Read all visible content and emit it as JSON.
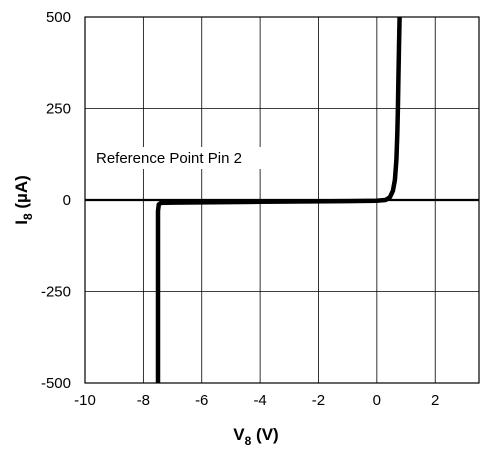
{
  "chart_data": {
    "type": "line",
    "title": "",
    "xlabel": {
      "main": "V",
      "sub": "8",
      "unit": " (V)"
    },
    "ylabel": {
      "main": "I",
      "sub": "8",
      "unit": " (µA)"
    },
    "xlim": [
      -10,
      3.5
    ],
    "ylim": [
      -500,
      500
    ],
    "x_ticks": [
      -10,
      -8,
      -6,
      -4,
      -2,
      0,
      2
    ],
    "x_tick_labels": [
      "-10",
      "-8",
      "-6",
      "-4",
      "-2",
      "0",
      "2"
    ],
    "y_ticks": [
      -500,
      -250,
      0,
      250,
      500
    ],
    "y_tick_labels": [
      "-500",
      "-250",
      "0",
      "250",
      "500"
    ],
    "grid": true,
    "annotation": "Reference Point Pin 2",
    "series": [
      {
        "x": [
          -7.5,
          -7.5,
          -7.47,
          -7.4,
          -7.0,
          -4.0,
          -1.0,
          0.0,
          0.3,
          0.45,
          0.55,
          0.62,
          0.67,
          0.7,
          0.72,
          0.74,
          0.76,
          0.78
        ],
        "y": [
          -500,
          -30,
          -12,
          -8,
          -7,
          -5,
          -3,
          -2,
          0,
          8,
          25,
          55,
          110,
          180,
          250,
          330,
          420,
          500
        ]
      }
    ]
  }
}
